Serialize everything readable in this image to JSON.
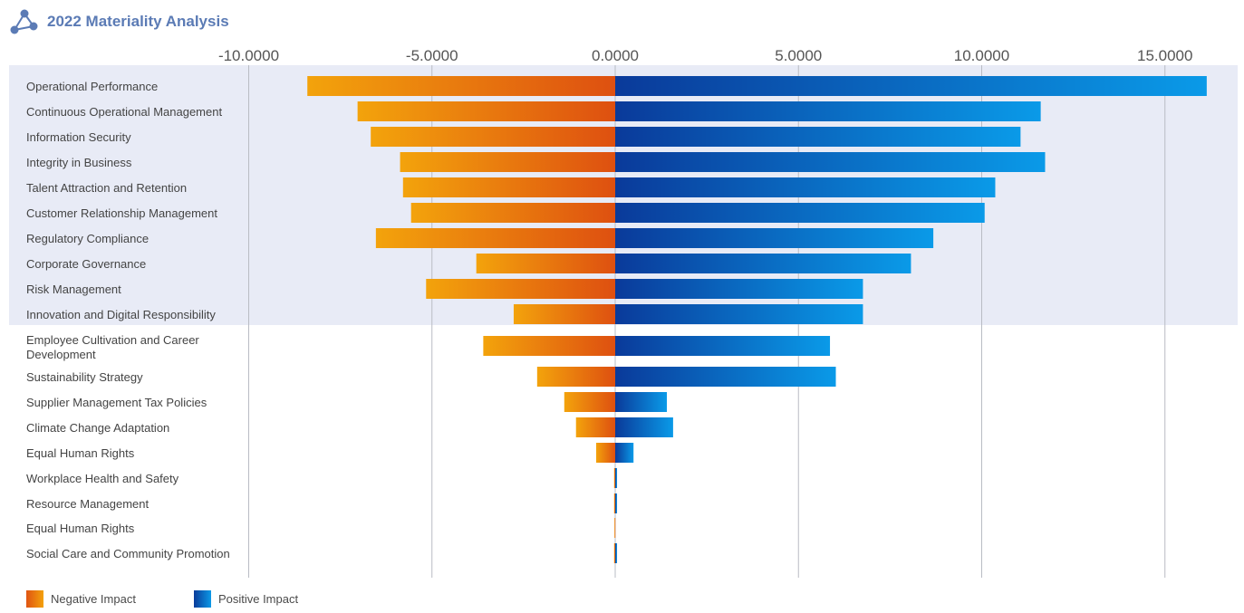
{
  "title": "2022 Materiality Analysis",
  "icons": {
    "header": "network-nodes-icon"
  },
  "colors": {
    "title": "#5b7bb5",
    "band": "#e8ebf6",
    "negative_start": "#f3a30c",
    "negative_end": "#de5010",
    "positive_start": "#0a3a9a",
    "positive_end": "#0a9ae8",
    "grid": "#b9bcc4"
  },
  "legend": {
    "negative": "Negative Impact",
    "positive": "Positive Impact"
  },
  "chart_data": {
    "type": "bar",
    "orientation": "horizontal",
    "xlim": [
      -10.0,
      16.5
    ],
    "ticks": [
      -10,
      -5,
      0,
      5,
      10,
      15
    ],
    "tick_labels": [
      "-10.0000",
      "-5.0000",
      "0.0000",
      "5.0000",
      "10.0000",
      "15.0000"
    ],
    "highlighted_rows": 10,
    "categories": [
      "Operational Performance",
      "Continuous Operational Management",
      "Information Security",
      "Integrity in Business",
      "Talent Attraction and Retention",
      "Customer Relationship Management",
      "Regulatory Compliance",
      "Corporate Governance",
      "Risk Management",
      "Innovation and Digital Responsibility",
      "Employee Cultivation and Career Development",
      "Sustainability Strategy",
      "Supplier Management Tax Policies",
      "Climate Change Adaptation",
      "Equal Human Rights",
      "Workplace Health and Safety",
      "Resource Management",
      "Equal Human Rights",
      "Social Care and Community Promotion"
    ],
    "series": [
      {
        "name": "Negative Impact",
        "values": [
          -8.4,
          -7.03,
          -6.67,
          -5.87,
          -5.79,
          -5.57,
          -6.53,
          -3.79,
          -5.16,
          -2.77,
          -3.6,
          -2.13,
          -1.39,
          -1.07,
          -0.52,
          -0.03,
          -0.03,
          -0.02,
          -0.03
        ]
      },
      {
        "name": "Positive Impact",
        "values": [
          16.14,
          11.61,
          11.06,
          11.73,
          10.37,
          10.08,
          8.68,
          8.07,
          6.76,
          6.76,
          5.86,
          6.02,
          1.41,
          1.58,
          0.5,
          0.05,
          0.05,
          0.0,
          0.05
        ]
      }
    ]
  }
}
